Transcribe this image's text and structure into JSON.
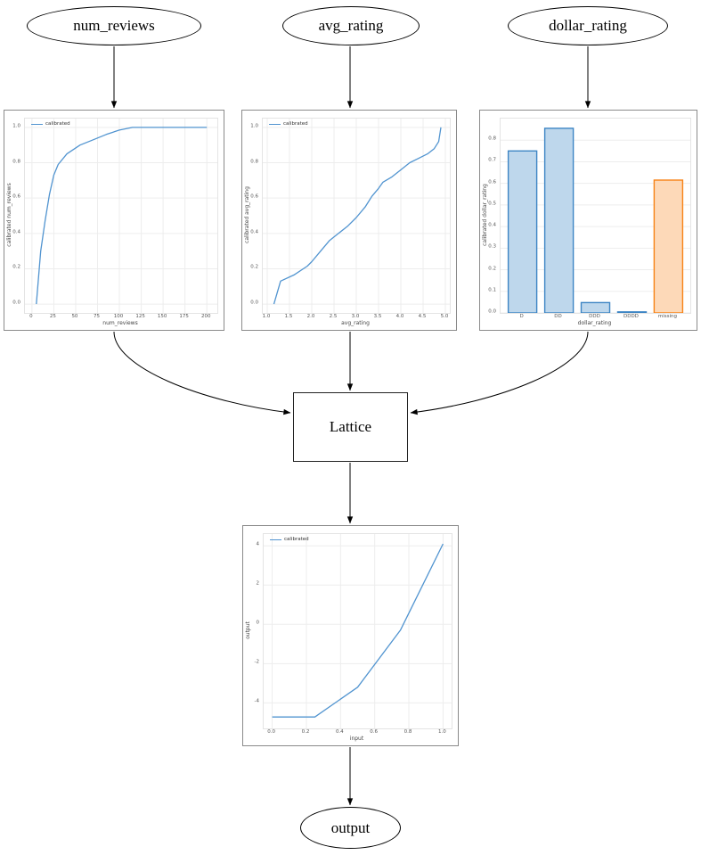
{
  "diagram": {
    "title": "lattice-model-graph",
    "nodes": {
      "num_reviews": {
        "label": "num_reviews"
      },
      "avg_rating": {
        "label": "avg_rating"
      },
      "dollar_rating": {
        "label": "dollar_rating"
      },
      "lattice": {
        "label": "Lattice"
      },
      "output": {
        "label": "output"
      }
    }
  },
  "colors": {
    "edge_stroke": "#000000",
    "figure_border": "#8a8a8a",
    "grid": "#ededed",
    "line_blue": "#5194d0",
    "bar_blue_fill": "#bed7ec",
    "bar_blue_edge": "#3d85c4",
    "bar_orange_fill": "#fdd9b8",
    "bar_orange_edge": "#f78317"
  },
  "chart_data": [
    {
      "id": "cal_num_reviews",
      "type": "line",
      "legend": "calibrated",
      "legend_position": "upper left",
      "grid": "xy",
      "xlabel": "num_reviews",
      "ylabel": "calibrated num_reviews",
      "xlim": [
        -8,
        212
      ],
      "ylim": [
        -0.05,
        1.05
      ],
      "xticks": [
        0,
        25,
        50,
        75,
        100,
        125,
        150,
        175,
        200
      ],
      "xtick_labels": [
        "0",
        "25",
        "50",
        "75",
        "100",
        "125",
        "150",
        "175",
        "200"
      ],
      "yticks": [
        0.0,
        0.2,
        0.4,
        0.6,
        0.8,
        1.0
      ],
      "ytick_labels": [
        "0.0",
        "0.2",
        "0.4",
        "0.6",
        "0.8",
        "1.0"
      ],
      "line_color": "#5194d0",
      "points": [
        [
          5,
          0.0
        ],
        [
          10,
          0.3
        ],
        [
          15,
          0.47
        ],
        [
          20,
          0.62
        ],
        [
          25,
          0.73
        ],
        [
          30,
          0.79
        ],
        [
          40,
          0.85
        ],
        [
          55,
          0.9
        ],
        [
          70,
          0.93
        ],
        [
          85,
          0.96
        ],
        [
          100,
          0.985
        ],
        [
          115,
          1.0
        ],
        [
          200,
          1.0
        ]
      ]
    },
    {
      "id": "cal_avg_rating",
      "type": "line",
      "legend": "calibrated",
      "legend_position": "upper left",
      "grid": "xy",
      "xlabel": "avg_rating",
      "ylabel": "calibrated avg_rating",
      "xlim": [
        0.9,
        5.1
      ],
      "ylim": [
        -0.05,
        1.05
      ],
      "xticks": [
        1.0,
        1.5,
        2.0,
        2.5,
        3.0,
        3.5,
        4.0,
        4.5,
        5.0
      ],
      "xtick_labels": [
        "1.0",
        "1.5",
        "2.0",
        "2.5",
        "3.0",
        "3.5",
        "4.0",
        "4.5",
        "5.0"
      ],
      "yticks": [
        0.0,
        0.2,
        0.4,
        0.6,
        0.8,
        1.0
      ],
      "ytick_labels": [
        "0.0",
        "0.2",
        "0.4",
        "0.6",
        "0.8",
        "1.0"
      ],
      "line_color": "#5194d0",
      "points": [
        [
          1.15,
          0.0
        ],
        [
          1.3,
          0.13
        ],
        [
          1.6,
          0.165
        ],
        [
          1.9,
          0.215
        ],
        [
          2.0,
          0.24
        ],
        [
          2.2,
          0.3
        ],
        [
          2.4,
          0.36
        ],
        [
          2.6,
          0.4
        ],
        [
          2.8,
          0.44
        ],
        [
          3.0,
          0.49
        ],
        [
          3.2,
          0.55
        ],
        [
          3.35,
          0.61
        ],
        [
          3.5,
          0.655
        ],
        [
          3.6,
          0.69
        ],
        [
          3.8,
          0.72
        ],
        [
          4.0,
          0.76
        ],
        [
          4.2,
          0.8
        ],
        [
          4.4,
          0.825
        ],
        [
          4.6,
          0.85
        ],
        [
          4.75,
          0.88
        ],
        [
          4.85,
          0.92
        ],
        [
          4.9,
          1.0
        ]
      ]
    },
    {
      "id": "cal_dollar_rating",
      "type": "bar",
      "legend": null,
      "grid": "y",
      "xlabel": "dollar_rating",
      "ylabel": "calibrated dollar_rating",
      "xlim": [
        -0.6,
        4.6
      ],
      "ylim": [
        0,
        0.9
      ],
      "categories": [
        "D",
        "DD",
        "DDD",
        "DDDD",
        "missing"
      ],
      "values": [
        0.75,
        0.855,
        0.048,
        0.005,
        0.615
      ],
      "yticks": [
        0.0,
        0.1,
        0.2,
        0.3,
        0.4,
        0.5,
        0.6,
        0.7,
        0.8
      ],
      "ytick_labels": [
        "0.0",
        "0.1",
        "0.2",
        "0.3",
        "0.4",
        "0.5",
        "0.6",
        "0.7",
        "0.8"
      ],
      "bar_fill": [
        "#bed7ec",
        "#bed7ec",
        "#bed7ec",
        "#bed7ec",
        "#fdd9b8"
      ],
      "bar_edge": [
        "#3d85c4",
        "#3d85c4",
        "#3d85c4",
        "#3d85c4",
        "#f78317"
      ]
    },
    {
      "id": "final_output",
      "type": "line",
      "legend": "calibrated",
      "legend_position": "upper left",
      "grid": "xy",
      "xlabel": "input",
      "ylabel": "output",
      "xlim": [
        -0.05,
        1.05
      ],
      "ylim": [
        -5.3,
        4.6
      ],
      "xticks": [
        0.0,
        0.2,
        0.4,
        0.6,
        0.8,
        1.0
      ],
      "xtick_labels": [
        "0.0",
        "0.2",
        "0.4",
        "0.6",
        "0.8",
        "1.0"
      ],
      "yticks": [
        -4,
        -2,
        0,
        2,
        4
      ],
      "ytick_labels": [
        "-4",
        "-2",
        "0",
        "2",
        "4"
      ],
      "line_color": "#5194d0",
      "points": [
        [
          0.0,
          -4.72
        ],
        [
          0.25,
          -4.72
        ],
        [
          0.5,
          -3.2
        ],
        [
          0.75,
          -0.3
        ],
        [
          1.0,
          4.1
        ]
      ]
    }
  ]
}
